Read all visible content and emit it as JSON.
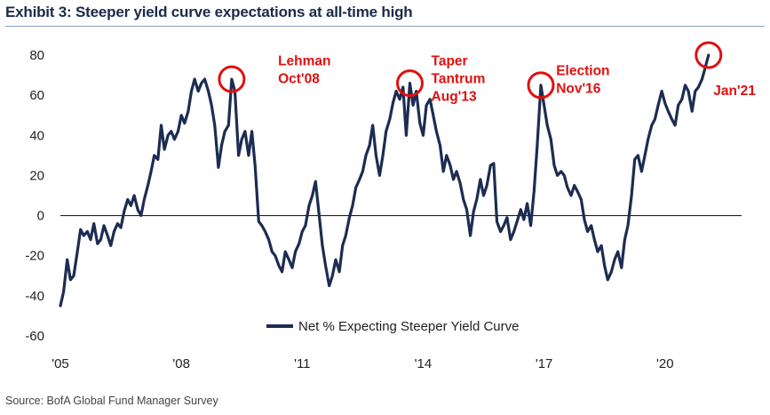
{
  "title": "Exhibit 3: Steeper yield curve expectations at all-time high",
  "source": "Source: BofA Global Fund Manager Survey",
  "colors": {
    "line": "#1c2c52",
    "accent": "#e01010",
    "zero_axis": "#222222"
  },
  "chart_data": {
    "type": "line",
    "title": "Exhibit 3: Steeper yield curve expectations at all-time high",
    "xlabel": "",
    "ylabel": "",
    "ylim": [
      -60,
      80
    ],
    "yticks": [
      80,
      60,
      40,
      20,
      0,
      -20,
      -40,
      -60
    ],
    "xlim": [
      2005.0,
      2021.9
    ],
    "xticks": [
      {
        "value": 2005,
        "label": "'05"
      },
      {
        "value": 2008,
        "label": "'08"
      },
      {
        "value": 2011,
        "label": "'11"
      },
      {
        "value": 2014,
        "label": "'14"
      },
      {
        "value": 2017,
        "label": "'17"
      },
      {
        "value": 2020,
        "label": "'20"
      }
    ],
    "grid": false,
    "legend": {
      "position": "bottom-center",
      "label": "Net % Expecting Steeper Yield Curve"
    },
    "series": [
      {
        "name": "Net % Expecting Steeper Yield Curve",
        "points": [
          [
            2005.0,
            -45
          ],
          [
            2005.08,
            -38
          ],
          [
            2005.17,
            -22
          ],
          [
            2005.25,
            -32
          ],
          [
            2005.33,
            -30
          ],
          [
            2005.42,
            -18
          ],
          [
            2005.5,
            -7
          ],
          [
            2005.58,
            -10
          ],
          [
            2005.67,
            -8
          ],
          [
            2005.75,
            -12
          ],
          [
            2005.83,
            -4
          ],
          [
            2005.92,
            -14
          ],
          [
            2006.0,
            -12
          ],
          [
            2006.08,
            -5
          ],
          [
            2006.17,
            -10
          ],
          [
            2006.25,
            -15
          ],
          [
            2006.33,
            -8
          ],
          [
            2006.42,
            -4
          ],
          [
            2006.5,
            -6
          ],
          [
            2006.58,
            2
          ],
          [
            2006.67,
            8
          ],
          [
            2006.75,
            5
          ],
          [
            2006.83,
            10
          ],
          [
            2006.92,
            3
          ],
          [
            2007.0,
            0
          ],
          [
            2007.08,
            8
          ],
          [
            2007.17,
            15
          ],
          [
            2007.25,
            22
          ],
          [
            2007.33,
            30
          ],
          [
            2007.42,
            28
          ],
          [
            2007.5,
            45
          ],
          [
            2007.58,
            33
          ],
          [
            2007.67,
            40
          ],
          [
            2007.75,
            42
          ],
          [
            2007.83,
            38
          ],
          [
            2007.92,
            42
          ],
          [
            2008.0,
            50
          ],
          [
            2008.08,
            46
          ],
          [
            2008.17,
            52
          ],
          [
            2008.25,
            62
          ],
          [
            2008.33,
            68
          ],
          [
            2008.42,
            62
          ],
          [
            2008.5,
            66
          ],
          [
            2008.58,
            68
          ],
          [
            2008.67,
            62
          ],
          [
            2008.75,
            55
          ],
          [
            2008.83,
            45
          ],
          [
            2008.92,
            24
          ],
          [
            2009.0,
            35
          ],
          [
            2009.08,
            42
          ],
          [
            2009.17,
            45
          ],
          [
            2009.25,
            68
          ],
          [
            2009.33,
            62
          ],
          [
            2009.42,
            30
          ],
          [
            2009.5,
            38
          ],
          [
            2009.58,
            42
          ],
          [
            2009.67,
            30
          ],
          [
            2009.75,
            42
          ],
          [
            2009.83,
            25
          ],
          [
            2009.92,
            -3
          ],
          [
            2010.0,
            -5
          ],
          [
            2010.08,
            -8
          ],
          [
            2010.17,
            -12
          ],
          [
            2010.25,
            -18
          ],
          [
            2010.33,
            -20
          ],
          [
            2010.42,
            -25
          ],
          [
            2010.5,
            -28
          ],
          [
            2010.58,
            -18
          ],
          [
            2010.67,
            -22
          ],
          [
            2010.75,
            -26
          ],
          [
            2010.83,
            -18
          ],
          [
            2010.92,
            -14
          ],
          [
            2011.0,
            -8
          ],
          [
            2011.08,
            -5
          ],
          [
            2011.17,
            5
          ],
          [
            2011.25,
            10
          ],
          [
            2011.33,
            17
          ],
          [
            2011.42,
            0
          ],
          [
            2011.5,
            -15
          ],
          [
            2011.58,
            -25
          ],
          [
            2011.67,
            -35
          ],
          [
            2011.75,
            -30
          ],
          [
            2011.83,
            -22
          ],
          [
            2011.92,
            -28
          ],
          [
            2012.0,
            -15
          ],
          [
            2012.08,
            -10
          ],
          [
            2012.17,
            -1
          ],
          [
            2012.25,
            5
          ],
          [
            2012.33,
            14
          ],
          [
            2012.42,
            18
          ],
          [
            2012.5,
            22
          ],
          [
            2012.58,
            30
          ],
          [
            2012.67,
            35
          ],
          [
            2012.75,
            45
          ],
          [
            2012.83,
            30
          ],
          [
            2012.92,
            20
          ],
          [
            2013.0,
            30
          ],
          [
            2013.08,
            42
          ],
          [
            2013.17,
            48
          ],
          [
            2013.25,
            56
          ],
          [
            2013.33,
            62
          ],
          [
            2013.42,
            58
          ],
          [
            2013.5,
            64
          ],
          [
            2013.58,
            40
          ],
          [
            2013.67,
            66
          ],
          [
            2013.75,
            55
          ],
          [
            2013.83,
            62
          ],
          [
            2013.92,
            46
          ],
          [
            2014.0,
            40
          ],
          [
            2014.08,
            55
          ],
          [
            2014.17,
            58
          ],
          [
            2014.25,
            50
          ],
          [
            2014.33,
            42
          ],
          [
            2014.42,
            35
          ],
          [
            2014.5,
            22
          ],
          [
            2014.58,
            30
          ],
          [
            2014.67,
            25
          ],
          [
            2014.75,
            18
          ],
          [
            2014.83,
            22
          ],
          [
            2014.92,
            16
          ],
          [
            2015.0,
            8
          ],
          [
            2015.08,
            3
          ],
          [
            2015.17,
            -10
          ],
          [
            2015.25,
            2
          ],
          [
            2015.33,
            8
          ],
          [
            2015.42,
            18
          ],
          [
            2015.5,
            10
          ],
          [
            2015.58,
            15
          ],
          [
            2015.67,
            25
          ],
          [
            2015.75,
            26
          ],
          [
            2015.83,
            -3
          ],
          [
            2015.92,
            -8
          ],
          [
            2016.0,
            -5
          ],
          [
            2016.08,
            -1
          ],
          [
            2016.17,
            -12
          ],
          [
            2016.25,
            -8
          ],
          [
            2016.33,
            -3
          ],
          [
            2016.42,
            3
          ],
          [
            2016.5,
            -2
          ],
          [
            2016.58,
            6
          ],
          [
            2016.67,
            -5
          ],
          [
            2016.75,
            12
          ],
          [
            2016.83,
            35
          ],
          [
            2016.92,
            65
          ],
          [
            2017.0,
            55
          ],
          [
            2017.08,
            45
          ],
          [
            2017.17,
            38
          ],
          [
            2017.25,
            25
          ],
          [
            2017.33,
            20
          ],
          [
            2017.42,
            22
          ],
          [
            2017.5,
            20
          ],
          [
            2017.58,
            14
          ],
          [
            2017.67,
            10
          ],
          [
            2017.75,
            15
          ],
          [
            2017.83,
            12
          ],
          [
            2017.92,
            8
          ],
          [
            2018.0,
            -2
          ],
          [
            2018.08,
            -8
          ],
          [
            2018.17,
            -5
          ],
          [
            2018.25,
            -12
          ],
          [
            2018.33,
            -18
          ],
          [
            2018.42,
            -15
          ],
          [
            2018.5,
            -25
          ],
          [
            2018.58,
            -32
          ],
          [
            2018.67,
            -28
          ],
          [
            2018.75,
            -22
          ],
          [
            2018.83,
            -18
          ],
          [
            2018.92,
            -26
          ],
          [
            2019.0,
            -12
          ],
          [
            2019.08,
            -5
          ],
          [
            2019.17,
            10
          ],
          [
            2019.25,
            28
          ],
          [
            2019.33,
            30
          ],
          [
            2019.42,
            22
          ],
          [
            2019.5,
            30
          ],
          [
            2019.58,
            38
          ],
          [
            2019.67,
            45
          ],
          [
            2019.75,
            48
          ],
          [
            2019.83,
            55
          ],
          [
            2019.92,
            62
          ],
          [
            2020.0,
            56
          ],
          [
            2020.08,
            52
          ],
          [
            2020.17,
            48
          ],
          [
            2020.25,
            45
          ],
          [
            2020.33,
            55
          ],
          [
            2020.42,
            58
          ],
          [
            2020.5,
            65
          ],
          [
            2020.58,
            62
          ],
          [
            2020.67,
            52
          ],
          [
            2020.75,
            62
          ],
          [
            2020.83,
            64
          ],
          [
            2020.92,
            68
          ],
          [
            2021.0,
            74
          ],
          [
            2021.08,
            80
          ]
        ]
      }
    ],
    "annotations": [
      {
        "lines": [
          "Lehman",
          "Oct'08"
        ],
        "at": [
          2009.25,
          68
        ],
        "text_at": [
          2010.4,
          75
        ]
      },
      {
        "lines": [
          "Taper",
          "Tantrum",
          "Aug'13"
        ],
        "at": [
          2013.67,
          66
        ],
        "text_at": [
          2014.2,
          75
        ]
      },
      {
        "lines": [
          "Election",
          "Nov'16"
        ],
        "at": [
          2016.92,
          65
        ],
        "text_at": [
          2017.3,
          70
        ]
      },
      {
        "lines": [
          "Jan'21"
        ],
        "at": [
          2021.08,
          80
        ],
        "text_at": [
          2021.2,
          60
        ]
      }
    ]
  }
}
